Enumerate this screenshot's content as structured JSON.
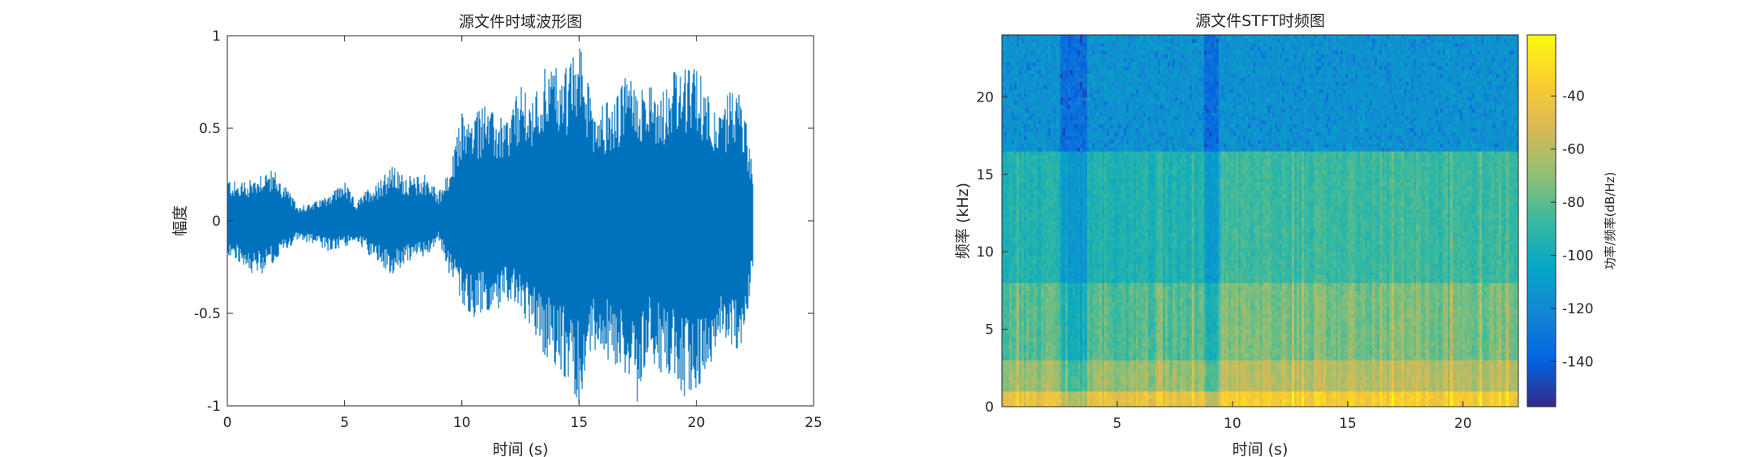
{
  "chart_data": [
    {
      "type": "line",
      "title": "源文件时域波形图",
      "xlabel": "时间 (s)",
      "ylabel": "幅度",
      "xlim": [
        0,
        25
      ],
      "ylim": [
        -1,
        1
      ],
      "xticks": [
        0,
        5,
        10,
        15,
        20,
        25
      ],
      "xtick_labels": [
        "0",
        "5",
        "10",
        "15",
        "20",
        "25"
      ],
      "yticks": [
        1,
        0.5,
        0,
        -0.5,
        -1
      ],
      "ytick_labels": [
        "1",
        "0.5",
        "0",
        "-0.5",
        "-1"
      ],
      "grid": false,
      "color": "#0072BD",
      "series": [
        {
          "x": [
            0,
            0.5,
            1,
            1.5,
            2,
            2.5,
            3,
            3.5,
            4,
            4.5,
            5,
            5.5,
            6,
            6.5,
            7,
            7.5,
            8,
            8.5,
            9,
            9.5,
            10,
            10.5,
            11,
            11.5,
            12,
            12.5,
            13,
            13.5,
            14,
            14.5,
            15,
            15.5,
            16,
            16.5,
            17,
            17.5,
            18,
            18.5,
            19,
            19.5,
            20,
            20.5,
            21,
            21.5,
            22,
            22.4
          ],
          "upper": [
            0.24,
            0.2,
            0.22,
            0.28,
            0.27,
            0.18,
            0.08,
            0.09,
            0.12,
            0.17,
            0.21,
            0.1,
            0.18,
            0.21,
            0.3,
            0.25,
            0.24,
            0.25,
            0.15,
            0.28,
            0.58,
            0.57,
            0.62,
            0.57,
            0.57,
            0.73,
            0.64,
            0.86,
            0.85,
            0.82,
            0.97,
            0.67,
            0.65,
            0.63,
            0.78,
            0.72,
            0.72,
            0.73,
            0.8,
            0.82,
            0.84,
            0.73,
            0.56,
            0.75,
            0.64,
            0.3
          ],
          "lower": [
            -0.2,
            -0.22,
            -0.28,
            -0.3,
            -0.22,
            -0.16,
            -0.1,
            -0.12,
            -0.15,
            -0.17,
            -0.14,
            -0.11,
            -0.18,
            -0.23,
            -0.29,
            -0.24,
            -0.2,
            -0.2,
            -0.1,
            -0.3,
            -0.44,
            -0.52,
            -0.48,
            -0.49,
            -0.43,
            -0.5,
            -0.57,
            -0.72,
            -0.78,
            -0.86,
            -0.98,
            -0.71,
            -0.73,
            -0.77,
            -0.84,
            -0.98,
            -0.74,
            -0.82,
            -0.83,
            -0.95,
            -0.9,
            -0.83,
            -0.6,
            -0.74,
            -0.7,
            -0.28
          ]
        }
      ]
    },
    {
      "type": "heatmap",
      "title": "源文件STFT时频图",
      "xlabel": "时间 (s)",
      "ylabel": "频率 (kHz)",
      "xlim": [
        0,
        22.4
      ],
      "ylim": [
        0,
        24
      ],
      "xticks": [
        5,
        10,
        15,
        20
      ],
      "xtick_labels": [
        "5",
        "10",
        "15",
        "20"
      ],
      "yticks": [
        0,
        5,
        10,
        15,
        20
      ],
      "ytick_labels": [
        "0",
        "5",
        "10",
        "15",
        "20"
      ],
      "colorbar": {
        "label": "功率/频率(dB/Hz)",
        "range": [
          -157,
          -17
        ],
        "ticks": [
          -40,
          -60,
          -80,
          -100,
          -120,
          -140
        ],
        "tick_labels": [
          "-40",
          "-60",
          "-80",
          "-100",
          "-120",
          "-140"
        ],
        "colormap": "parula"
      },
      "band_levels_db": [
        {
          "freq_khz_from": 0,
          "freq_khz_to": 1,
          "level_db": -45
        },
        {
          "freq_khz_from": 1,
          "freq_khz_to": 3,
          "level_db": -68
        },
        {
          "freq_khz_from": 3,
          "freq_khz_to": 8,
          "level_db": -82
        },
        {
          "freq_khz_from": 8,
          "freq_khz_to": 16.5,
          "level_db": -95
        },
        {
          "freq_khz_from": 16.5,
          "freq_khz_to": 24,
          "level_db": -115
        }
      ],
      "quiet_regions_s": [
        [
          2.5,
          3.7
        ],
        [
          8.8,
          9.4
        ]
      ]
    }
  ]
}
